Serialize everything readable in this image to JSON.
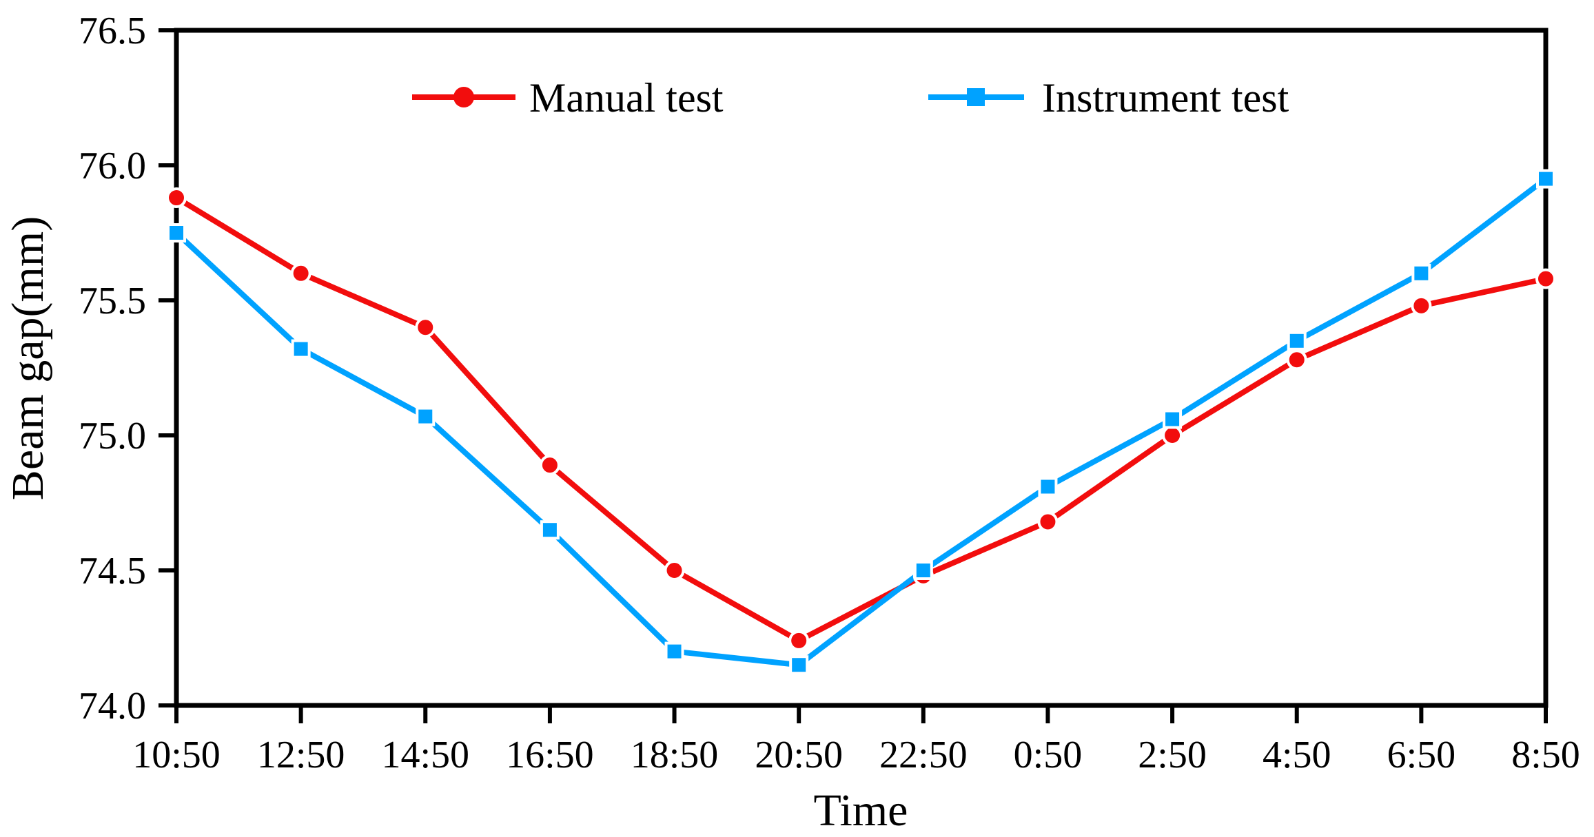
{
  "figure": {
    "background": "#ffffff",
    "frame_color": "#000000"
  },
  "chart_data": {
    "type": "line",
    "title": "",
    "xlabel": "Time",
    "ylabel": "Beam gap(mm)",
    "categories": [
      "10:50",
      "12:50",
      "14:50",
      "16:50",
      "18:50",
      "20:50",
      "22:50",
      "0:50",
      "2:50",
      "4:50",
      "6:50",
      "8:50"
    ],
    "series": [
      {
        "name": "Manual test",
        "color": "#f20d0d",
        "marker": "circle",
        "values": [
          75.88,
          75.6,
          75.4,
          74.89,
          74.5,
          74.24,
          74.48,
          74.68,
          75.0,
          75.28,
          75.48,
          75.58
        ]
      },
      {
        "name": "Instrument test",
        "color": "#00a2ff",
        "marker": "square",
        "values": [
          75.75,
          75.32,
          75.07,
          74.65,
          74.2,
          74.15,
          74.5,
          74.81,
          75.06,
          75.35,
          75.6,
          75.95
        ]
      }
    ],
    "ylim": [
      74.0,
      76.5
    ],
    "yticks": [
      74.0,
      74.5,
      75.0,
      75.5,
      76.0,
      76.5
    ],
    "ytick_labels": [
      "74.0",
      "74.5",
      "75.0",
      "75.5",
      "76.0",
      "76.5"
    ],
    "grid": false,
    "legend_position": "top-center",
    "axis_color": "#000000",
    "text_color": "#000000"
  }
}
